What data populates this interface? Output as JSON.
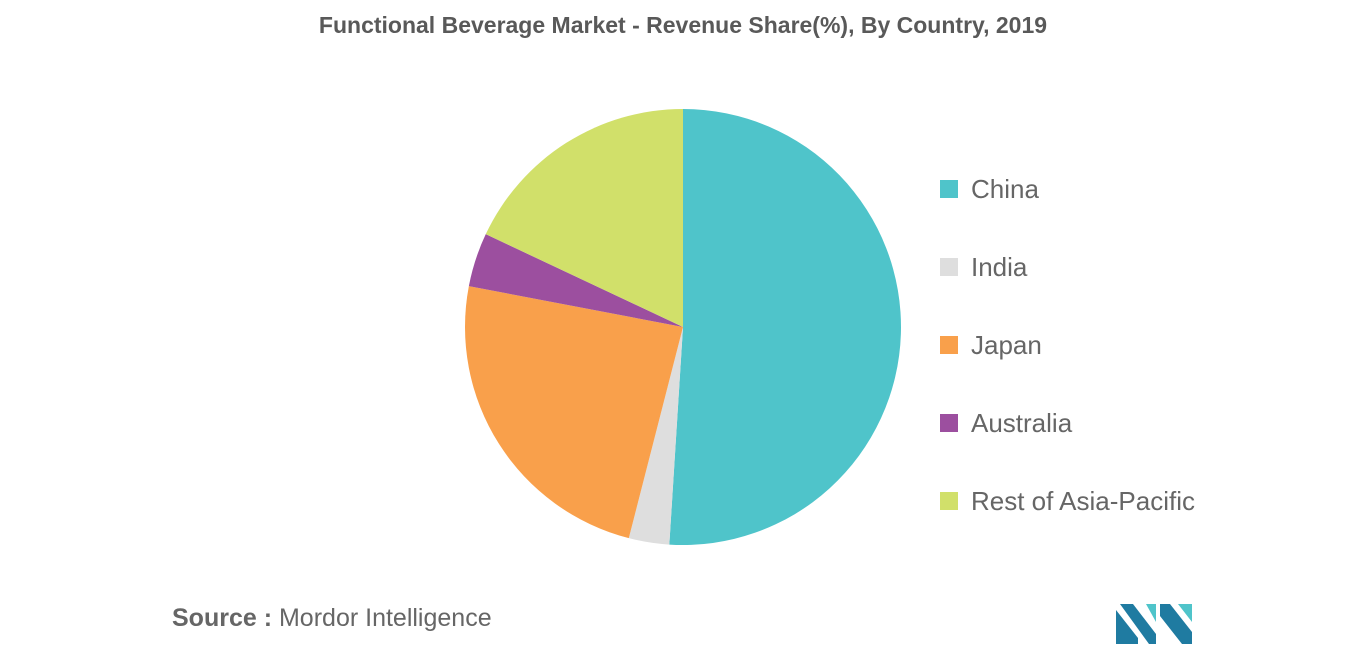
{
  "chart_data": {
    "type": "pie",
    "title": "Functional Beverage Market - Revenue Share(%), By Country, 2019",
    "categories": [
      "China",
      "India",
      "Japan",
      "Australia",
      "Rest of Asia-Pacific"
    ],
    "values": [
      51,
      3,
      24,
      4,
      18
    ],
    "colors": [
      "#4fc4ca",
      "#dedede",
      "#f9a04b",
      "#9c4f9f",
      "#d1e06a"
    ],
    "legend_position": "right"
  },
  "source": {
    "label": "Source :",
    "text": "Mordor Intelligence"
  },
  "logo": {
    "icon": "mordor-intelligence-logo",
    "colors": [
      "#1f7ba1",
      "#4fc4ca"
    ]
  }
}
